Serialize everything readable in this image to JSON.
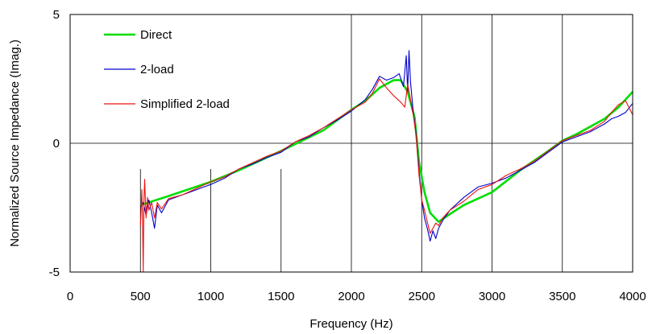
{
  "chart_data": {
    "type": "line",
    "title": "",
    "xlabel": "Frequency (Hz)",
    "ylabel": "Normalized Source Impedance (Imag.)",
    "xlim": [
      0,
      4000
    ],
    "ylim": [
      -5,
      5
    ],
    "xticks": [
      0,
      500,
      1000,
      1500,
      2000,
      2500,
      3000,
      3500,
      4000
    ],
    "yticks": [
      -5,
      0,
      5
    ],
    "grid": "vertical lines at x ticks in lower band, full height from 2000",
    "legend": {
      "placement": "top-left",
      "entries": [
        "Direct",
        "2-load",
        "Simplified 2-load"
      ]
    },
    "series": [
      {
        "name": "Direct",
        "color": "#00dd00",
        "points": [
          [
            500,
            -2.4
          ],
          [
            700,
            -2.05
          ],
          [
            1000,
            -1.5
          ],
          [
            1200,
            -1.05
          ],
          [
            1500,
            -0.3
          ],
          [
            1800,
            0.5
          ],
          [
            2000,
            1.3
          ],
          [
            2100,
            1.65
          ],
          [
            2200,
            2.15
          ],
          [
            2300,
            2.45
          ],
          [
            2350,
            2.45
          ],
          [
            2400,
            2.0
          ],
          [
            2450,
            1.0
          ],
          [
            2480,
            -0.7
          ],
          [
            2520,
            -1.9
          ],
          [
            2560,
            -2.7
          ],
          [
            2620,
            -3.05
          ],
          [
            2700,
            -2.75
          ],
          [
            2800,
            -2.4
          ],
          [
            2900,
            -2.15
          ],
          [
            3000,
            -1.9
          ],
          [
            3200,
            -1.05
          ],
          [
            3400,
            -0.3
          ],
          [
            3500,
            0.1
          ],
          [
            3600,
            0.35
          ],
          [
            3800,
            0.95
          ],
          [
            3900,
            1.4
          ],
          [
            4000,
            2.0
          ]
        ]
      },
      {
        "name": "2-load",
        "color": "#0000cc",
        "points": [
          [
            500,
            -2.5
          ],
          [
            520,
            -2.3
          ],
          [
            540,
            -2.8
          ],
          [
            560,
            -2.2
          ],
          [
            580,
            -2.7
          ],
          [
            600,
            -3.3
          ],
          [
            620,
            -2.4
          ],
          [
            650,
            -2.7
          ],
          [
            700,
            -2.2
          ],
          [
            800,
            -2.0
          ],
          [
            900,
            -1.8
          ],
          [
            1000,
            -1.6
          ],
          [
            1100,
            -1.35
          ],
          [
            1200,
            -1.0
          ],
          [
            1300,
            -0.8
          ],
          [
            1400,
            -0.55
          ],
          [
            1500,
            -0.35
          ],
          [
            1600,
            0.05
          ],
          [
            1700,
            0.25
          ],
          [
            1800,
            0.6
          ],
          [
            1900,
            0.9
          ],
          [
            2000,
            1.25
          ],
          [
            2100,
            1.7
          ],
          [
            2150,
            2.1
          ],
          [
            2200,
            2.6
          ],
          [
            2250,
            2.45
          ],
          [
            2300,
            2.55
          ],
          [
            2340,
            2.7
          ],
          [
            2370,
            2.2
          ],
          [
            2390,
            3.4
          ],
          [
            2400,
            2.0
          ],
          [
            2410,
            3.6
          ],
          [
            2420,
            2.4
          ],
          [
            2440,
            1.2
          ],
          [
            2460,
            0.4
          ],
          [
            2480,
            -1.0
          ],
          [
            2500,
            -2.2
          ],
          [
            2520,
            -2.9
          ],
          [
            2540,
            -3.3
          ],
          [
            2560,
            -3.8
          ],
          [
            2580,
            -3.4
          ],
          [
            2600,
            -3.7
          ],
          [
            2620,
            -3.3
          ],
          [
            2650,
            -3.0
          ],
          [
            2700,
            -2.6
          ],
          [
            2800,
            -2.1
          ],
          [
            2900,
            -1.7
          ],
          [
            3000,
            -1.55
          ],
          [
            3100,
            -1.35
          ],
          [
            3200,
            -1.05
          ],
          [
            3300,
            -0.75
          ],
          [
            3400,
            -0.35
          ],
          [
            3500,
            0.05
          ],
          [
            3600,
            0.25
          ],
          [
            3700,
            0.45
          ],
          [
            3800,
            0.75
          ],
          [
            3850,
            0.95
          ],
          [
            3900,
            1.05
          ],
          [
            3950,
            1.2
          ],
          [
            4000,
            1.55
          ]
        ]
      },
      {
        "name": "Simplified 2-load",
        "color": "#ee1111",
        "points": [
          [
            500,
            -3.2
          ],
          [
            510,
            -1.8
          ],
          [
            515,
            -3.0
          ],
          [
            520,
            -5.0
          ],
          [
            525,
            -2.2
          ],
          [
            530,
            -1.4
          ],
          [
            540,
            -2.9
          ],
          [
            550,
            -2.1
          ],
          [
            560,
            -2.6
          ],
          [
            580,
            -2.3
          ],
          [
            600,
            -2.9
          ],
          [
            620,
            -2.3
          ],
          [
            650,
            -2.55
          ],
          [
            700,
            -2.15
          ],
          [
            800,
            -2.0
          ],
          [
            900,
            -1.75
          ],
          [
            1000,
            -1.5
          ],
          [
            1100,
            -1.3
          ],
          [
            1200,
            -1.0
          ],
          [
            1300,
            -0.75
          ],
          [
            1400,
            -0.5
          ],
          [
            1500,
            -0.3
          ],
          [
            1600,
            0.05
          ],
          [
            1700,
            0.3
          ],
          [
            1800,
            0.6
          ],
          [
            1900,
            0.95
          ],
          [
            2000,
            1.3
          ],
          [
            2100,
            1.6
          ],
          [
            2150,
            1.95
          ],
          [
            2200,
            2.5
          ],
          [
            2250,
            2.15
          ],
          [
            2300,
            1.85
          ],
          [
            2350,
            1.6
          ],
          [
            2380,
            1.4
          ],
          [
            2400,
            2.3
          ],
          [
            2420,
            1.7
          ],
          [
            2440,
            1.1
          ],
          [
            2460,
            0.3
          ],
          [
            2480,
            -1.2
          ],
          [
            2500,
            -2.2
          ],
          [
            2520,
            -2.6
          ],
          [
            2540,
            -3.05
          ],
          [
            2560,
            -3.5
          ],
          [
            2580,
            -3.3
          ],
          [
            2600,
            -3.1
          ],
          [
            2620,
            -3.2
          ],
          [
            2650,
            -2.9
          ],
          [
            2700,
            -2.6
          ],
          [
            2800,
            -2.25
          ],
          [
            2900,
            -1.8
          ],
          [
            3000,
            -1.6
          ],
          [
            3100,
            -1.25
          ],
          [
            3200,
            -1.0
          ],
          [
            3300,
            -0.7
          ],
          [
            3400,
            -0.3
          ],
          [
            3500,
            0.1
          ],
          [
            3600,
            0.3
          ],
          [
            3700,
            0.5
          ],
          [
            3800,
            0.85
          ],
          [
            3850,
            1.2
          ],
          [
            3900,
            1.5
          ],
          [
            3950,
            1.65
          ],
          [
            4000,
            1.1
          ]
        ]
      }
    ]
  }
}
